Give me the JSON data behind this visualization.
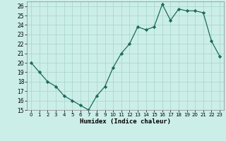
{
  "x": [
    0,
    1,
    2,
    3,
    4,
    5,
    6,
    7,
    8,
    9,
    10,
    11,
    12,
    13,
    14,
    15,
    16,
    17,
    18,
    19,
    20,
    21,
    22,
    23
  ],
  "y": [
    20,
    19,
    18,
    17.5,
    16.5,
    16,
    15.5,
    15,
    16.5,
    17.5,
    19.5,
    21,
    22,
    23.8,
    23.5,
    23.8,
    26.2,
    24.5,
    25.7,
    25.5,
    25.5,
    25.3,
    22.3,
    20.7
  ],
  "xlabel": "Humidex (Indice chaleur)",
  "ylim": [
    15,
    26.5
  ],
  "xlim": [
    -0.5,
    23.5
  ],
  "yticks": [
    15,
    16,
    17,
    18,
    19,
    20,
    21,
    22,
    23,
    24,
    25,
    26
  ],
  "xticks": [
    0,
    1,
    2,
    3,
    4,
    5,
    6,
    7,
    8,
    9,
    10,
    11,
    12,
    13,
    14,
    15,
    16,
    17,
    18,
    19,
    20,
    21,
    22,
    23
  ],
  "line_color": "#1a6b5a",
  "marker": "D",
  "marker_size": 2.2,
  "bg_color": "#cceee8",
  "grid_color": "#aad8d0",
  "fig_bg": "#cceee8"
}
